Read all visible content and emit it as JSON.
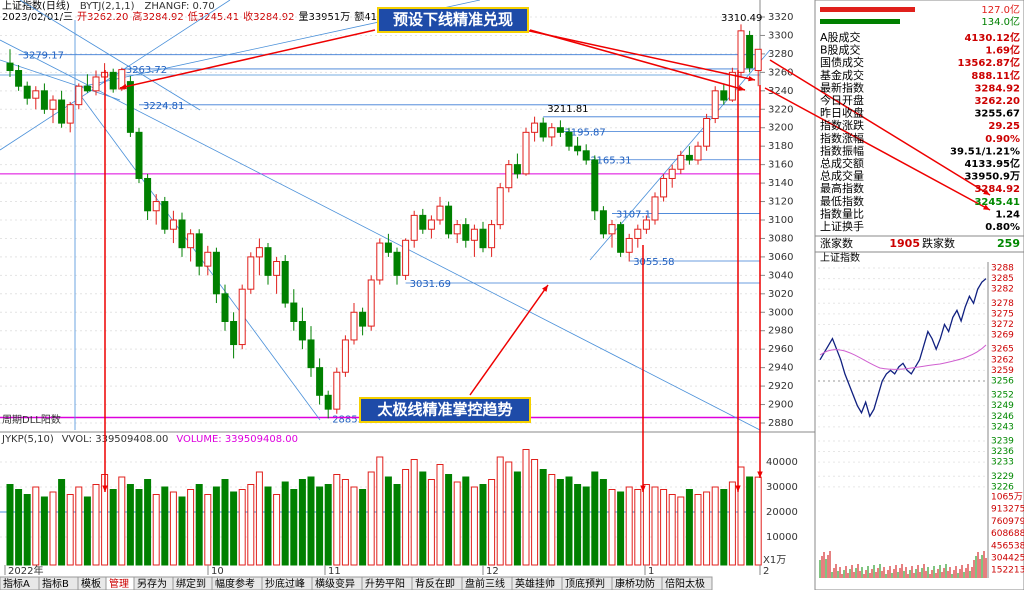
{
  "header": {
    "line1": [
      "上证指数(日线)",
      "BYTJ(2,1,1)",
      "ZHANGF: 0.70"
    ],
    "line2": [
      "2023/02/01/三",
      "开3262.20",
      "高3284.92",
      "低3245.41",
      "收3284.92",
      "量33951万",
      "额4134亿",
      "幅29.25(0.90%)"
    ]
  },
  "chart": {
    "price_ticks": [
      2880,
      2900,
      2920,
      2940,
      2960,
      2980,
      3000,
      3020,
      3040,
      3060,
      3080,
      3100,
      3120,
      3140,
      3160,
      3180,
      3200,
      3220,
      3240,
      3260,
      3280,
      3300,
      3320
    ],
    "candles": [
      [
        3270,
        3285,
        3255,
        3262
      ],
      [
        3262,
        3268,
        3240,
        3245
      ],
      [
        3245,
        3250,
        3225,
        3232
      ],
      [
        3232,
        3245,
        3220,
        3240
      ],
      [
        3240,
        3248,
        3215,
        3220
      ],
      [
        3220,
        3235,
        3205,
        3230
      ],
      [
        3230,
        3240,
        3200,
        3205
      ],
      [
        3205,
        3228,
        3195,
        3225
      ],
      [
        3225,
        3248,
        3220,
        3245
      ],
      [
        3245,
        3258,
        3238,
        3240
      ],
      [
        3240,
        3262,
        3235,
        3255
      ],
      [
        3255,
        3270,
        3248,
        3260
      ],
      [
        3260,
        3264,
        3238,
        3242
      ],
      [
        3242,
        3265,
        3240,
        3263
      ],
      [
        3250,
        3256,
        3190,
        3195
      ],
      [
        3195,
        3200,
        3140,
        3145
      ],
      [
        3145,
        3150,
        3100,
        3110
      ],
      [
        3110,
        3128,
        3095,
        3120
      ],
      [
        3120,
        3125,
        3085,
        3090
      ],
      [
        3090,
        3110,
        3075,
        3100
      ],
      [
        3100,
        3108,
        3060,
        3070
      ],
      [
        3070,
        3090,
        3055,
        3085
      ],
      [
        3085,
        3090,
        3040,
        3050
      ],
      [
        3050,
        3072,
        3040,
        3065
      ],
      [
        3065,
        3070,
        3010,
        3020
      ],
      [
        3020,
        3030,
        2980,
        2990
      ],
      [
        2990,
        3000,
        2950,
        2965
      ],
      [
        2965,
        3030,
        2960,
        3025
      ],
      [
        3025,
        3065,
        3020,
        3060
      ],
      [
        3060,
        3080,
        3040,
        3070
      ],
      [
        3070,
        3075,
        3030,
        3040
      ],
      [
        3040,
        3060,
        3020,
        3055
      ],
      [
        3055,
        3062,
        3005,
        3010
      ],
      [
        3010,
        3025,
        2980,
        2990
      ],
      [
        2990,
        3005,
        2960,
        2970
      ],
      [
        2970,
        2985,
        2930,
        2940
      ],
      [
        2940,
        2950,
        2900,
        2910
      ],
      [
        2910,
        2915,
        2885,
        2895
      ],
      [
        2895,
        2940,
        2890,
        2935
      ],
      [
        2935,
        2975,
        2930,
        2970
      ],
      [
        2970,
        3010,
        2965,
        3000
      ],
      [
        3000,
        3005,
        2975,
        2985
      ],
      [
        2985,
        3040,
        2980,
        3035
      ],
      [
        3035,
        3080,
        3030,
        3075
      ],
      [
        3075,
        3085,
        3060,
        3065
      ],
      [
        3065,
        3070,
        3030,
        3040
      ],
      [
        3040,
        3080,
        3035,
        3078
      ],
      [
        3078,
        3110,
        3070,
        3105
      ],
      [
        3105,
        3112,
        3085,
        3090
      ],
      [
        3090,
        3105,
        3080,
        3100
      ],
      [
        3100,
        3125,
        3095,
        3115
      ],
      [
        3115,
        3120,
        3080,
        3085
      ],
      [
        3085,
        3100,
        3075,
        3095
      ],
      [
        3095,
        3102,
        3070,
        3078
      ],
      [
        3078,
        3095,
        3060,
        3090
      ],
      [
        3090,
        3098,
        3065,
        3070
      ],
      [
        3070,
        3100,
        3060,
        3095
      ],
      [
        3095,
        3140,
        3090,
        3135
      ],
      [
        3135,
        3165,
        3130,
        3160
      ],
      [
        3160,
        3172,
        3145,
        3150
      ],
      [
        3150,
        3200,
        3148,
        3195
      ],
      [
        3195,
        3212,
        3185,
        3205
      ],
      [
        3205,
        3211,
        3185,
        3190
      ],
      [
        3190,
        3205,
        3180,
        3200
      ],
      [
        3200,
        3208,
        3190,
        3195
      ],
      [
        3195,
        3200,
        3175,
        3180
      ],
      [
        3180,
        3190,
        3170,
        3175
      ],
      [
        3175,
        3182,
        3160,
        3165
      ],
      [
        3165,
        3170,
        3100,
        3110
      ],
      [
        3110,
        3115,
        3080,
        3085
      ],
      [
        3085,
        3100,
        3070,
        3095
      ],
      [
        3095,
        3098,
        3060,
        3065
      ],
      [
        3065,
        3085,
        3055,
        3080
      ],
      [
        3080,
        3095,
        3070,
        3090
      ],
      [
        3090,
        3105,
        3085,
        3100
      ],
      [
        3100,
        3130,
        3095,
        3125
      ],
      [
        3125,
        3150,
        3120,
        3145
      ],
      [
        3145,
        3160,
        3135,
        3155
      ],
      [
        3155,
        3175,
        3150,
        3170
      ],
      [
        3170,
        3180,
        3160,
        3165
      ],
      [
        3165,
        3185,
        3160,
        3180
      ],
      [
        3180,
        3215,
        3175,
        3210
      ],
      [
        3210,
        3245,
        3205,
        3240
      ],
      [
        3240,
        3248,
        3225,
        3230
      ],
      [
        3230,
        3265,
        3228,
        3260
      ],
      [
        3260,
        3312,
        3255,
        3305
      ],
      [
        3300,
        3305,
        3260,
        3265
      ],
      [
        3262,
        3285,
        3245,
        3285
      ]
    ],
    "volumes": [
      31000,
      29000,
      27000,
      30000,
      26000,
      28000,
      33000,
      27000,
      30000,
      26000,
      31000,
      35000,
      29000,
      34000,
      31000,
      29000,
      33000,
      27000,
      30000,
      28000,
      26000,
      29000,
      31000,
      27000,
      30000,
      33000,
      28000,
      29000,
      31000,
      36000,
      30000,
      27000,
      32000,
      29000,
      33000,
      34000,
      30000,
      31000,
      35000,
      33000,
      30000,
      29000,
      36000,
      42000,
      34000,
      31000,
      37000,
      41000,
      36000,
      33000,
      39000,
      35000,
      32000,
      34000,
      30000,
      31000,
      33000,
      42000,
      40000,
      36000,
      45000,
      41000,
      37000,
      35000,
      33000,
      34000,
      31000,
      30000,
      36000,
      33000,
      29000,
      28000,
      30000,
      29000,
      31000,
      30000,
      29000,
      27000,
      26000,
      29000,
      27000,
      28000,
      30000,
      29000,
      32000,
      38000,
      34000,
      33951
    ],
    "volume_ticks": [
      10000,
      20000,
      30000,
      40000
    ],
    "volume_unit": "X1万",
    "dates": [
      "2022年",
      "10",
      "11",
      "12",
      "1",
      "2"
    ],
    "price_marks": [
      3279.17,
      3263.72,
      3224.81,
      3031.69,
      2885.09,
      3211.81,
      3195.87,
      3165.31,
      3107.12,
      3055.58,
      3310.49
    ],
    "left_note": "周期DLL阳数",
    "vol_header": [
      "JYKP(5,10)",
      "VVOL: 339509408.00",
      "VOLUME: 339509408.00"
    ]
  },
  "callouts": [
    "预设下线精准兑现",
    "太极线精准掌控趋势"
  ],
  "tabs": [
    "指标A",
    "指标B",
    "模板",
    "管理",
    "另存为",
    "绑定到",
    "幅度参考",
    "抄底过峰",
    "横级变异",
    "升势平阳",
    "背反在即",
    "盘前三线",
    "英雄挂帅",
    "顶底预判",
    "康桥功防",
    "倍阳太极"
  ],
  "panel": {
    "bars": [
      "127.0亿",
      "134.0亿"
    ],
    "rows": [
      [
        "A股成交",
        "4130.12亿"
      ],
      [
        "B股成交",
        "1.69亿"
      ],
      [
        "国债成交",
        "13562.87亿"
      ],
      [
        "基金成交",
        "888.11亿"
      ],
      [
        "最新指数",
        "3284.92"
      ],
      [
        "今日开盘",
        "3262.20"
      ],
      [
        "昨日收盘",
        "3255.67"
      ],
      [
        "指数涨跌",
        "29.25"
      ],
      [
        "指数涨幅",
        "0.90%"
      ],
      [
        "指数振幅",
        "39.51/1.21%"
      ],
      [
        "总成交额",
        "4133.95亿"
      ],
      [
        "总成交量",
        "33950.9万"
      ],
      [
        "最高指数",
        "3284.92"
      ],
      [
        "最低指数",
        "3245.41"
      ],
      [
        "指数量比",
        "1.24"
      ],
      [
        "上证换手",
        "0.80%"
      ]
    ],
    "breadth": [
      "涨家数",
      "1905",
      "跌家数",
      "259"
    ],
    "intraday_title": "上证指数",
    "intraday_ticks": [
      3288,
      3285,
      3282,
      3278,
      3275,
      3272,
      3269,
      3265,
      3262,
      3259,
      3256,
      3252,
      3249,
      3246,
      3243,
      3239,
      3236,
      3233,
      3229,
      3226
    ],
    "intraday_vol_ticks": [
      "1065万",
      "913275",
      "760979",
      "608688",
      "456538",
      "304425",
      "152213"
    ],
    "intraday": [
      3262,
      3264,
      3266,
      3268,
      3265,
      3262,
      3258,
      3255,
      3252,
      3249,
      3247,
      3250,
      3246,
      3248,
      3252,
      3256,
      3258,
      3259,
      3258,
      3260,
      3261,
      3259,
      3258,
      3260,
      3262,
      3266,
      3270,
      3268,
      3265,
      3268,
      3272,
      3270,
      3274,
      3276,
      3273,
      3277,
      3280,
      3278,
      3282,
      3284,
      3285
    ]
  }
}
